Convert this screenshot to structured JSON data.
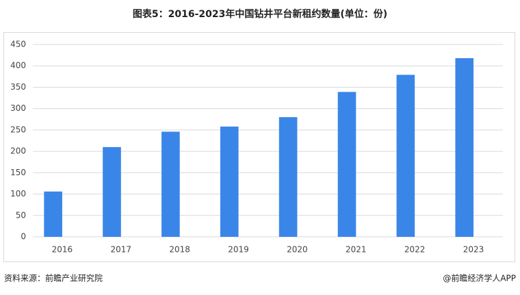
{
  "chart_data": {
    "type": "bar",
    "title": "图表5：2016-2023年中国钻井平台新租约数量(单位：份)",
    "categories": [
      "2016",
      "2017",
      "2018",
      "2019",
      "2020",
      "2021",
      "2022",
      "2023"
    ],
    "values": [
      106,
      210,
      246,
      258,
      280,
      339,
      379,
      418
    ],
    "color": "#3a86e8",
    "ylim": [
      0,
      450
    ],
    "yticks": [
      0,
      50,
      100,
      150,
      200,
      250,
      300,
      350,
      400,
      450
    ],
    "grid": true
  },
  "footer": {
    "source": "资料来源：前瞻产业研究院",
    "credit": "@前瞻经济学人APP"
  }
}
